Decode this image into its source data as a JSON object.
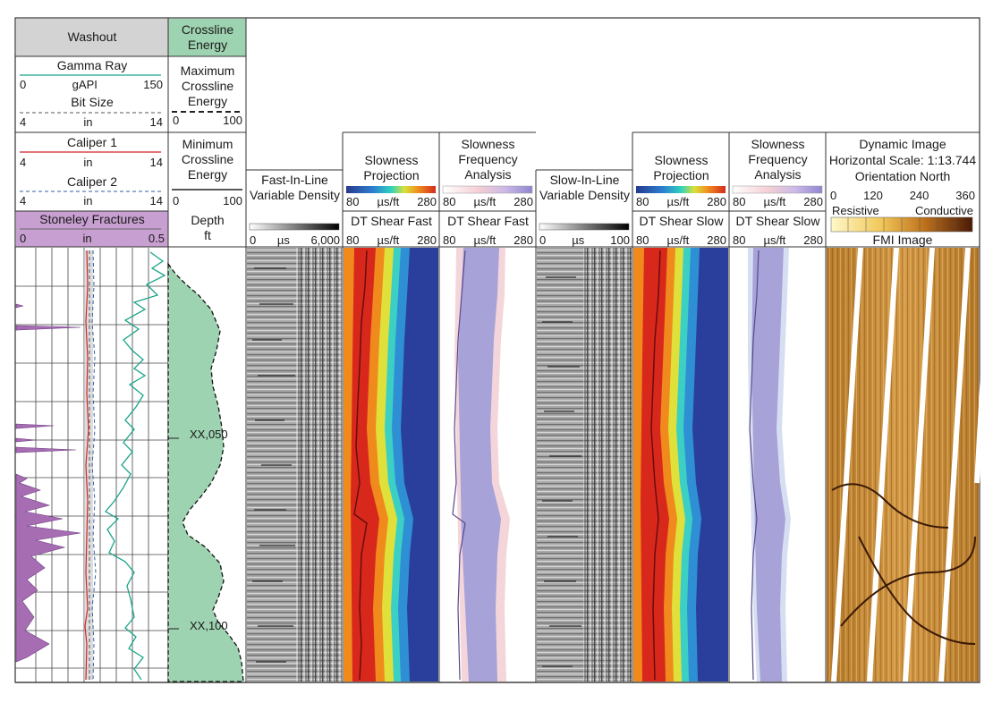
{
  "tracks": {
    "washout": {
      "title": "Washout"
    },
    "gamma_ray": {
      "title": "Gamma Ray",
      "min": "0",
      "unit": "gAPI",
      "max": "150"
    },
    "bit_size": {
      "title": "Bit Size",
      "min": "4",
      "unit": "in",
      "max": "14"
    },
    "caliper1": {
      "title": "Caliper 1",
      "min": "4",
      "unit": "in",
      "max": "14"
    },
    "caliper2": {
      "title": "Caliper 2",
      "min": "4",
      "unit": "in",
      "max": "14"
    },
    "stoneley": {
      "title": "Stoneley Fractures",
      "min": "0",
      "unit": "in",
      "max": "0.5"
    },
    "crossline": {
      "title": "Crossline Energy"
    },
    "max_crossline": {
      "title": "Maximum Crossline Energy",
      "min": "0",
      "max": "100"
    },
    "min_crossline": {
      "title": "Minimum Crossline Energy",
      "min": "0",
      "max": "100"
    },
    "depth": {
      "title": "Depth",
      "unit": "ft",
      "labels": [
        "XX,050",
        "XX,100"
      ]
    },
    "fast_vd": {
      "title": "Fast-In-Line Variable Density",
      "min": "0",
      "unit": "µs",
      "max": "6,000"
    },
    "slow_proj_fast": {
      "title": "Slowness Projection",
      "sub": "DT Shear Fast",
      "min": "80",
      "unit": "µs/ft",
      "max": "280"
    },
    "sfa_fast": {
      "title": "Slowness Frequency Analysis",
      "min": "80",
      "unit": "µs/ft",
      "max": "280",
      "sub": "DT Shear Fast",
      "min2": "80",
      "unit2": "µs/ft",
      "max2": "280"
    },
    "slow_vd": {
      "title": "Slow-In-Line Variable Density",
      "min": "0",
      "unit": "µs",
      "max": "100"
    },
    "slow_proj_slow": {
      "title": "Slowness Projection",
      "sub": "DT Shear Slow",
      "min": "80",
      "unit": "µs/ft",
      "max": "280"
    },
    "sfa_slow": {
      "title": "Slowness Frequency Analysis",
      "min": "80",
      "unit": "µs/ft",
      "max": "280",
      "sub": "DT Shear Slow",
      "min2": "80",
      "unit2": "µs/ft",
      "max2": "280"
    },
    "fmi": {
      "title": "Dynamic Image",
      "scale": "Horizontal Scale: 1:13.744",
      "orientation": "Orientation North",
      "ticks": [
        "0",
        "120",
        "240",
        "360"
      ],
      "left": "Resistive",
      "right": "Conductive",
      "sub": "FMI Image"
    }
  },
  "colors": {
    "gamma": "#1aa58a",
    "caliper1": "#d2232a",
    "caliper2": "#2f5fa8",
    "stoneley": "#a66db3",
    "stoneley_header": "#c79fd0",
    "crossline_fill": "#9ed3b1",
    "washout_header": "#d3d3d3",
    "fmi_base": "#c28a3a"
  }
}
